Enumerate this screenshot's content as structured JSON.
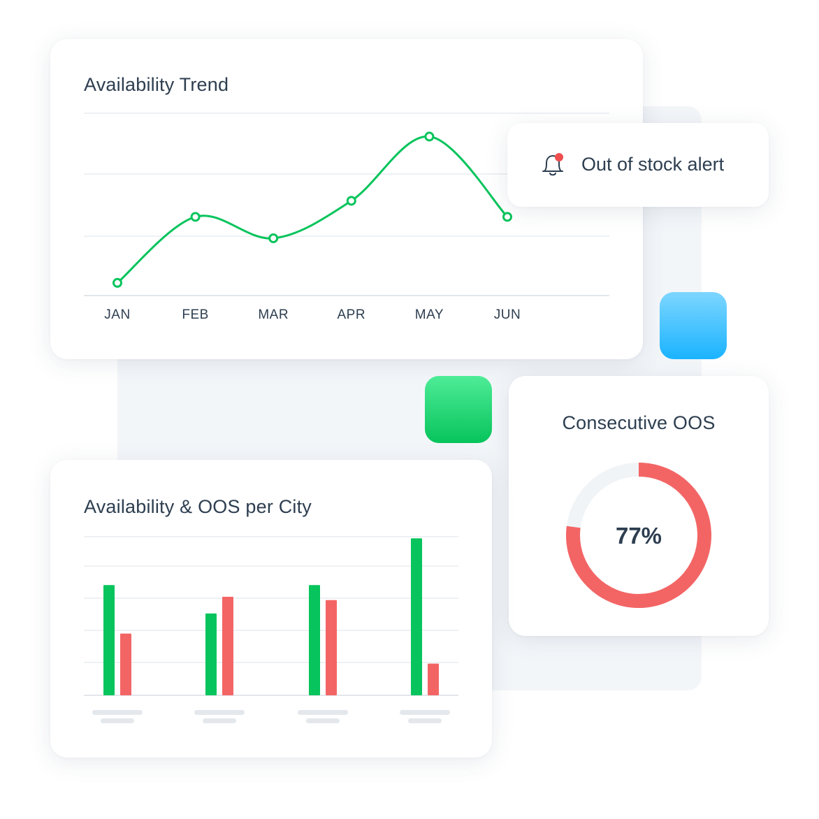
{
  "colors": {
    "green": "#07c45c",
    "red": "#f36565",
    "blue": "#1ab3ff",
    "text": "#2d3e50",
    "grid": "#eef1f4",
    "placeholder": "#e4e8ec"
  },
  "alert": {
    "text": "Out of stock alert",
    "icon": "bell-notification-icon"
  },
  "chart_data": [
    {
      "type": "line",
      "title": "Availability Trend",
      "categories": [
        "JAN",
        "FEB",
        "MAR",
        "APR",
        "MAY",
        "JUN"
      ],
      "series": [
        {
          "values": [
            10,
            47,
            35,
            56,
            92,
            47
          ],
          "color": "#07c45c"
        }
      ],
      "ylim": [
        6,
        100
      ],
      "grid": true
    },
    {
      "type": "bar",
      "title": "Availability & OOS per City",
      "categories": [
        "",
        "",
        "",
        ""
      ],
      "series": [
        {
          "values": [
            66,
            49,
            66,
            94
          ],
          "color": "#07c45c"
        },
        {
          "values": [
            37,
            59,
            57,
            19
          ],
          "color": "#f36565"
        }
      ],
      "ylim": [
        0,
        100
      ],
      "grid": true
    },
    {
      "type": "pie",
      "title": "Consecutive OOS",
      "value": 77,
      "label": "77%",
      "max": 100,
      "color": "#f36565"
    }
  ]
}
